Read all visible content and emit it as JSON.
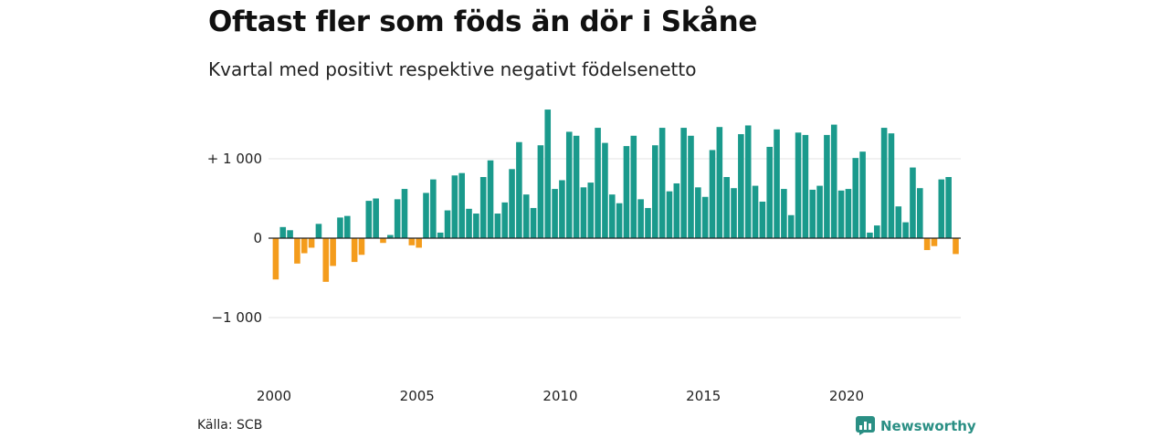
{
  "title": "Oftast fler som föds än dör i Skåne",
  "subtitle": "Kvartal med positivt respektive negativt födelsenetto",
  "source": "Källa: SCB",
  "brand": "Newsworthy",
  "colors": {
    "positive": "#1a9a8c",
    "negative": "#f49c1c",
    "brand": "#2a8f84"
  },
  "chart_data": {
    "type": "bar",
    "title": "Oftast fler som föds än dör i Skåne",
    "subtitle": "Kvartal med positivt respektive negativt födelsenetto",
    "xlabel": "",
    "ylabel": "",
    "ylim": [
      -1600,
      1700
    ],
    "grid": true,
    "y_ticks": [
      {
        "value": 1000,
        "label": "+ 1 000"
      },
      {
        "value": 0,
        "label": "0"
      },
      {
        "value": -1000,
        "label": "−1 000"
      }
    ],
    "x_ticks": [
      {
        "value": 2000,
        "label": "2000"
      },
      {
        "value": 2005,
        "label": "2005"
      },
      {
        "value": 2010,
        "label": "2010"
      },
      {
        "value": 2015,
        "label": "2015"
      },
      {
        "value": 2020,
        "label": "2020"
      }
    ],
    "start_quarter": "2000 Q1",
    "values": [
      -520,
      140,
      100,
      -320,
      -190,
      -120,
      180,
      -550,
      -350,
      260,
      280,
      -300,
      -210,
      470,
      500,
      -60,
      40,
      490,
      620,
      -90,
      -120,
      570,
      740,
      70,
      350,
      790,
      820,
      370,
      310,
      770,
      980,
      310,
      450,
      870,
      1210,
      550,
      380,
      1170,
      1620,
      620,
      730,
      1340,
      1290,
      640,
      700,
      1390,
      1200,
      550,
      440,
      1160,
      1290,
      490,
      380,
      1170,
      1390,
      590,
      690,
      1390,
      1290,
      640,
      520,
      1110,
      1400,
      770,
      630,
      1310,
      1420,
      660,
      460,
      1150,
      1370,
      620,
      290,
      1330,
      1300,
      610,
      660,
      1300,
      1430,
      600,
      620,
      1010,
      1090,
      70,
      160,
      1390,
      1320,
      400,
      200,
      890,
      630,
      -150,
      -100,
      740,
      770,
      -200
    ]
  }
}
